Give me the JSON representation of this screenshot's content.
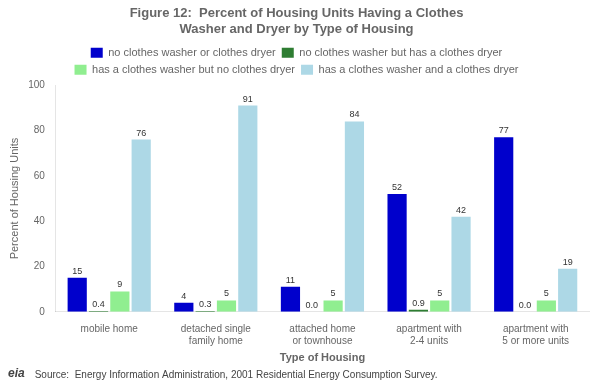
{
  "chart_data": {
    "type": "bar",
    "title": "Figure 12:  Percent of Housing Units Having a Clothes\nWasher and Dryer by Type of Housing",
    "xlabel": "Type of Housing",
    "ylabel": "Percent of Housing Units",
    "categories": [
      "mobile home",
      "detached single\nfamily home",
      "attached home\nor townhouse",
      "apartment with\n2-4 units",
      "apartment with\n5 or more units"
    ],
    "series": [
      {
        "name": "no clothes washer or clothes dryer",
        "color": "#0000CC",
        "values": [
          15,
          4,
          11,
          52,
          77
        ]
      },
      {
        "name": "no clothes washer but has a clothes dryer",
        "color": "#2E7D32",
        "values": [
          0.4,
          0.3,
          0.0,
          0.9,
          0.0
        ],
        "value_labels": [
          "0.4",
          "0.3",
          "0.0",
          "0.9",
          "0.0"
        ]
      },
      {
        "name": "has a clothes washer but no clothes dryer",
        "color": "#90EE90",
        "values": [
          9,
          5,
          5,
          5,
          5
        ]
      },
      {
        "name": "has a clothes washer and a clothes dryer",
        "color": "#ADD8E6",
        "values": [
          76,
          91,
          84,
          42,
          19
        ]
      }
    ],
    "ylim": [
      0,
      100
    ],
    "yticks": [
      0,
      20,
      40,
      60,
      80,
      100
    ],
    "grid": false,
    "legend": "top",
    "data_labels": true,
    "annotations": [
      "eia",
      "Source:  Energy Information Administration, 2001 Residential Energy Consumption Survey."
    ]
  }
}
